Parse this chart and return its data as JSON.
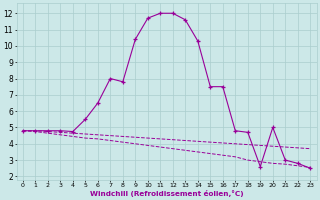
{
  "xlabel": "Windchill (Refroidissement éolien,°C)",
  "bg_color": "#cce8e8",
  "grid_color": "#aacece",
  "line_color": "#990099",
  "x_ticks": [
    0,
    1,
    2,
    3,
    4,
    5,
    6,
    7,
    8,
    9,
    10,
    11,
    12,
    13,
    14,
    15,
    16,
    17,
    18,
    19,
    20,
    21,
    22,
    23
  ],
  "y_ticks": [
    2,
    3,
    4,
    5,
    6,
    7,
    8,
    9,
    10,
    11,
    12
  ],
  "ylim": [
    1.8,
    12.6
  ],
  "xlim": [
    -0.5,
    23.5
  ],
  "line1_x": [
    0,
    1,
    2,
    3,
    4,
    5,
    6,
    7,
    8,
    9,
    10,
    11,
    12,
    13,
    14,
    15,
    16,
    17,
    18,
    19,
    20,
    21,
    22,
    23
  ],
  "line1_y": [
    4.8,
    4.8,
    4.75,
    4.7,
    4.65,
    4.6,
    4.55,
    4.5,
    4.45,
    4.4,
    4.35,
    4.3,
    4.25,
    4.2,
    4.15,
    4.1,
    4.05,
    4.0,
    3.95,
    3.9,
    3.85,
    3.8,
    3.75,
    3.7
  ],
  "line2_x": [
    0,
    1,
    2,
    3,
    4,
    5,
    6,
    7,
    8,
    9,
    10,
    11,
    12,
    13,
    14,
    15,
    16,
    17,
    18,
    19,
    20,
    21,
    22,
    23
  ],
  "line2_y": [
    4.8,
    4.75,
    4.65,
    4.55,
    4.45,
    4.35,
    4.3,
    4.2,
    4.1,
    4.0,
    3.9,
    3.8,
    3.7,
    3.6,
    3.5,
    3.4,
    3.3,
    3.2,
    3.0,
    2.9,
    2.8,
    2.75,
    2.65,
    2.55
  ],
  "line3_x": [
    0,
    1,
    2,
    3,
    4,
    5,
    6,
    7,
    8,
    9,
    10,
    11,
    12,
    13,
    14,
    15,
    16,
    17,
    18,
    19,
    20,
    21,
    22,
    23
  ],
  "line3_y": [
    4.8,
    4.8,
    4.8,
    4.8,
    4.75,
    5.5,
    6.5,
    8.0,
    7.8,
    10.4,
    11.7,
    12.0,
    12.0,
    11.6,
    10.3,
    7.5,
    7.5,
    4.8,
    4.7,
    2.6,
    5.0,
    3.0,
    2.8,
    2.5
  ]
}
